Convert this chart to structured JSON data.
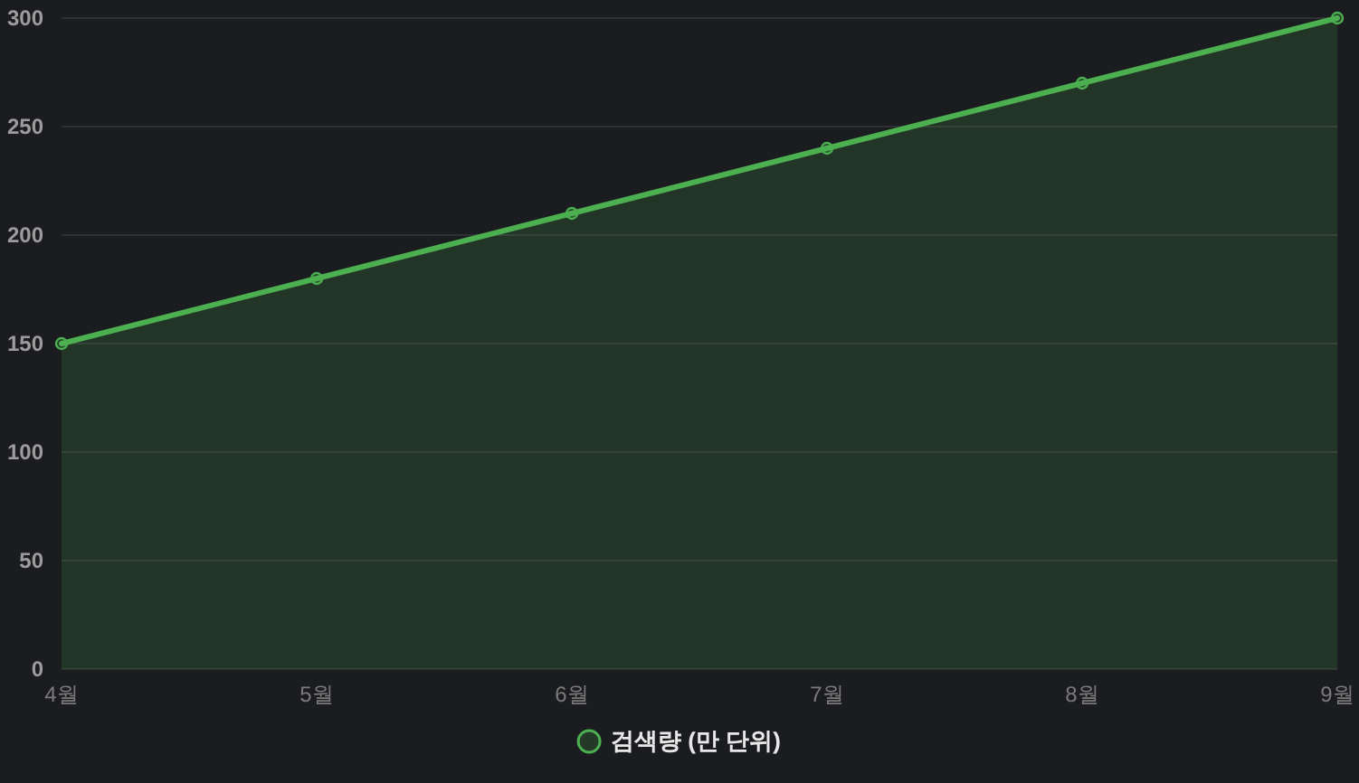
{
  "chart_data": {
    "type": "area",
    "categories": [
      "4월",
      "5월",
      "6월",
      "7월",
      "8월",
      "9월"
    ],
    "series": [
      {
        "name": "검색량 (만 단위)",
        "color": "#4caf50",
        "values": [
          150,
          180,
          210,
          240,
          270,
          300
        ]
      }
    ],
    "ylim": [
      0,
      300
    ],
    "yticks": [
      0,
      50,
      100,
      150,
      200,
      250,
      300
    ],
    "grid": "y",
    "legend": "bottom",
    "marker": "circle"
  }
}
